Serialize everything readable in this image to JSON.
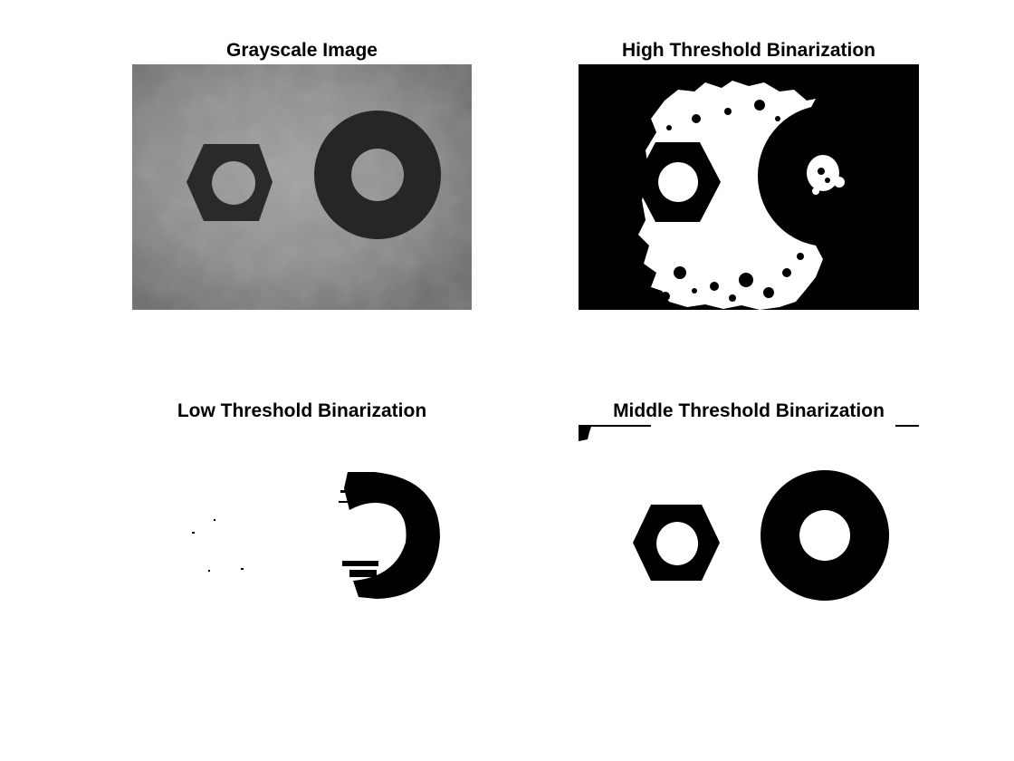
{
  "figure": {
    "panels": [
      {
        "title": "Grayscale Image"
      },
      {
        "title": "High Threshold Binarization"
      },
      {
        "title": "Low Threshold Binarization"
      },
      {
        "title": "Middle Threshold Binarization"
      }
    ]
  },
  "colors": {
    "background": "#ffffff",
    "black": "#000000",
    "white": "#ffffff",
    "gray_background": "#8f8f8f",
    "gray_object": "#222222"
  }
}
